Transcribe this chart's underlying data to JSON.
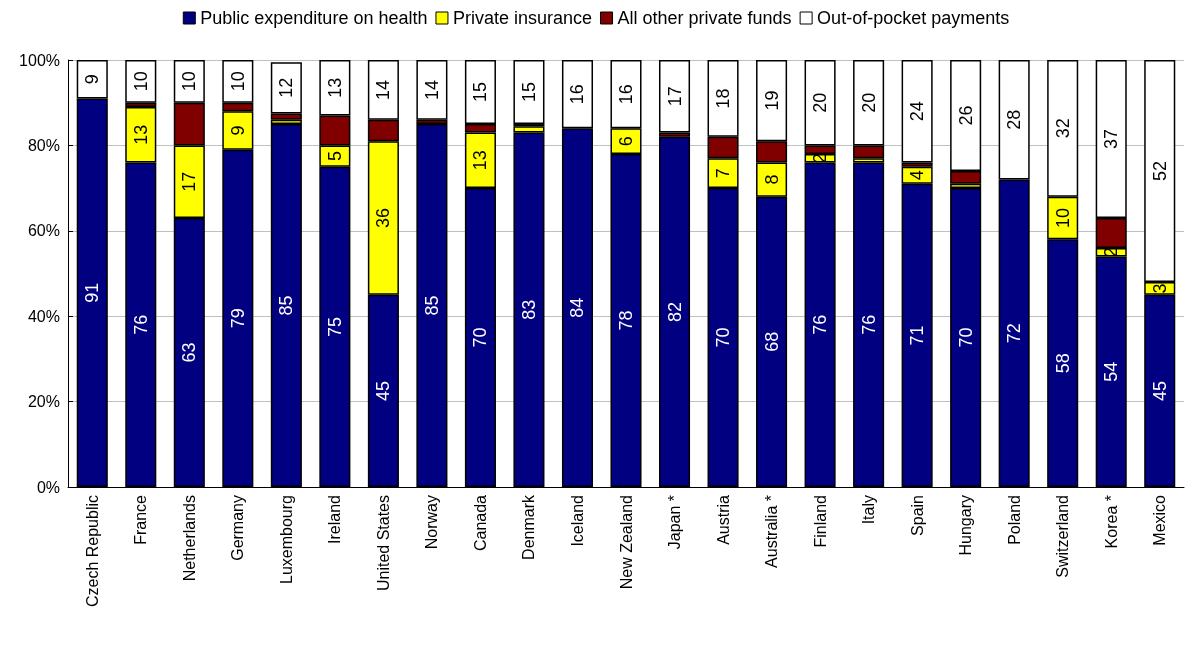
{
  "chart_data": {
    "type": "bar",
    "stacked": true,
    "legend": "top",
    "grid": "y",
    "categories": [
      "Czech Republic",
      "France",
      "Netherlands",
      "Germany",
      "Luxembourg",
      "Ireland",
      "United States",
      "Norway",
      "Canada",
      "Denmark",
      "Iceland",
      "New Zealand",
      "Japan *",
      "Austria",
      "Australia *",
      "Finland",
      "Italy",
      "Spain",
      "Hungary",
      "Poland",
      "Switzerland",
      "Korea *",
      "Mexico"
    ],
    "ylim": [
      0,
      100
    ],
    "yticks": [
      {
        "value": 0,
        "label": "0%"
      },
      {
        "value": 20,
        "label": "20%"
      },
      {
        "value": 40,
        "label": "40%"
      },
      {
        "value": 60,
        "label": "60%"
      },
      {
        "value": 80,
        "label": "80%"
      },
      {
        "value": 100,
        "label": "100%"
      }
    ],
    "series": [
      {
        "name": "Public expenditure on health",
        "color": "#000080",
        "values": [
          91,
          76,
          63,
          79,
          85,
          75,
          45,
          85,
          70,
          83,
          84,
          78,
          82,
          70,
          68,
          76,
          76,
          71,
          70,
          72,
          58,
          54,
          45
        ],
        "value_labels": [
          "91",
          "76",
          "63",
          "79",
          "85",
          "75",
          "45",
          "85",
          "70",
          "83",
          "84",
          "78",
          "82",
          "70",
          "68",
          "76",
          "76",
          "71",
          "70",
          "72",
          "58",
          "54",
          "45"
        ]
      },
      {
        "name": "Private insurance",
        "color": "#ffff00",
        "values": [
          null,
          13,
          17,
          9,
          1,
          5,
          36,
          null,
          13,
          1.5,
          null,
          6,
          null,
          7,
          8,
          2,
          1,
          4,
          1,
          null,
          10,
          2,
          3
        ],
        "value_labels": [
          null,
          "13",
          "17",
          "9",
          null,
          "5",
          "36",
          null,
          "13",
          null,
          null,
          "6",
          null,
          "7",
          "8",
          "2",
          null,
          "4",
          null,
          null,
          "10",
          "2",
          "3"
        ]
      },
      {
        "name": "All other private funds",
        "color": "#800000",
        "values": [
          null,
          1,
          10,
          2,
          1.5,
          7,
          5,
          1,
          2,
          0.5,
          null,
          null,
          1,
          5,
          5,
          2,
          3,
          1,
          3,
          null,
          null,
          7,
          null
        ]
      },
      {
        "name": "Out-of-pocket payments",
        "color": "#ffffff",
        "values": [
          9,
          10,
          10,
          10,
          12,
          13,
          14,
          14,
          15,
          15,
          16,
          16,
          17,
          18,
          19,
          20,
          20,
          24,
          26,
          28,
          32,
          37,
          52
        ],
        "value_labels": [
          "9",
          "10",
          "10",
          "10",
          "12",
          "13",
          "14",
          "14",
          "15",
          "15",
          "16",
          "16",
          "17",
          "18",
          "19",
          "20",
          "20",
          "24",
          "26",
          "28",
          "32",
          "37",
          "52"
        ]
      }
    ]
  }
}
